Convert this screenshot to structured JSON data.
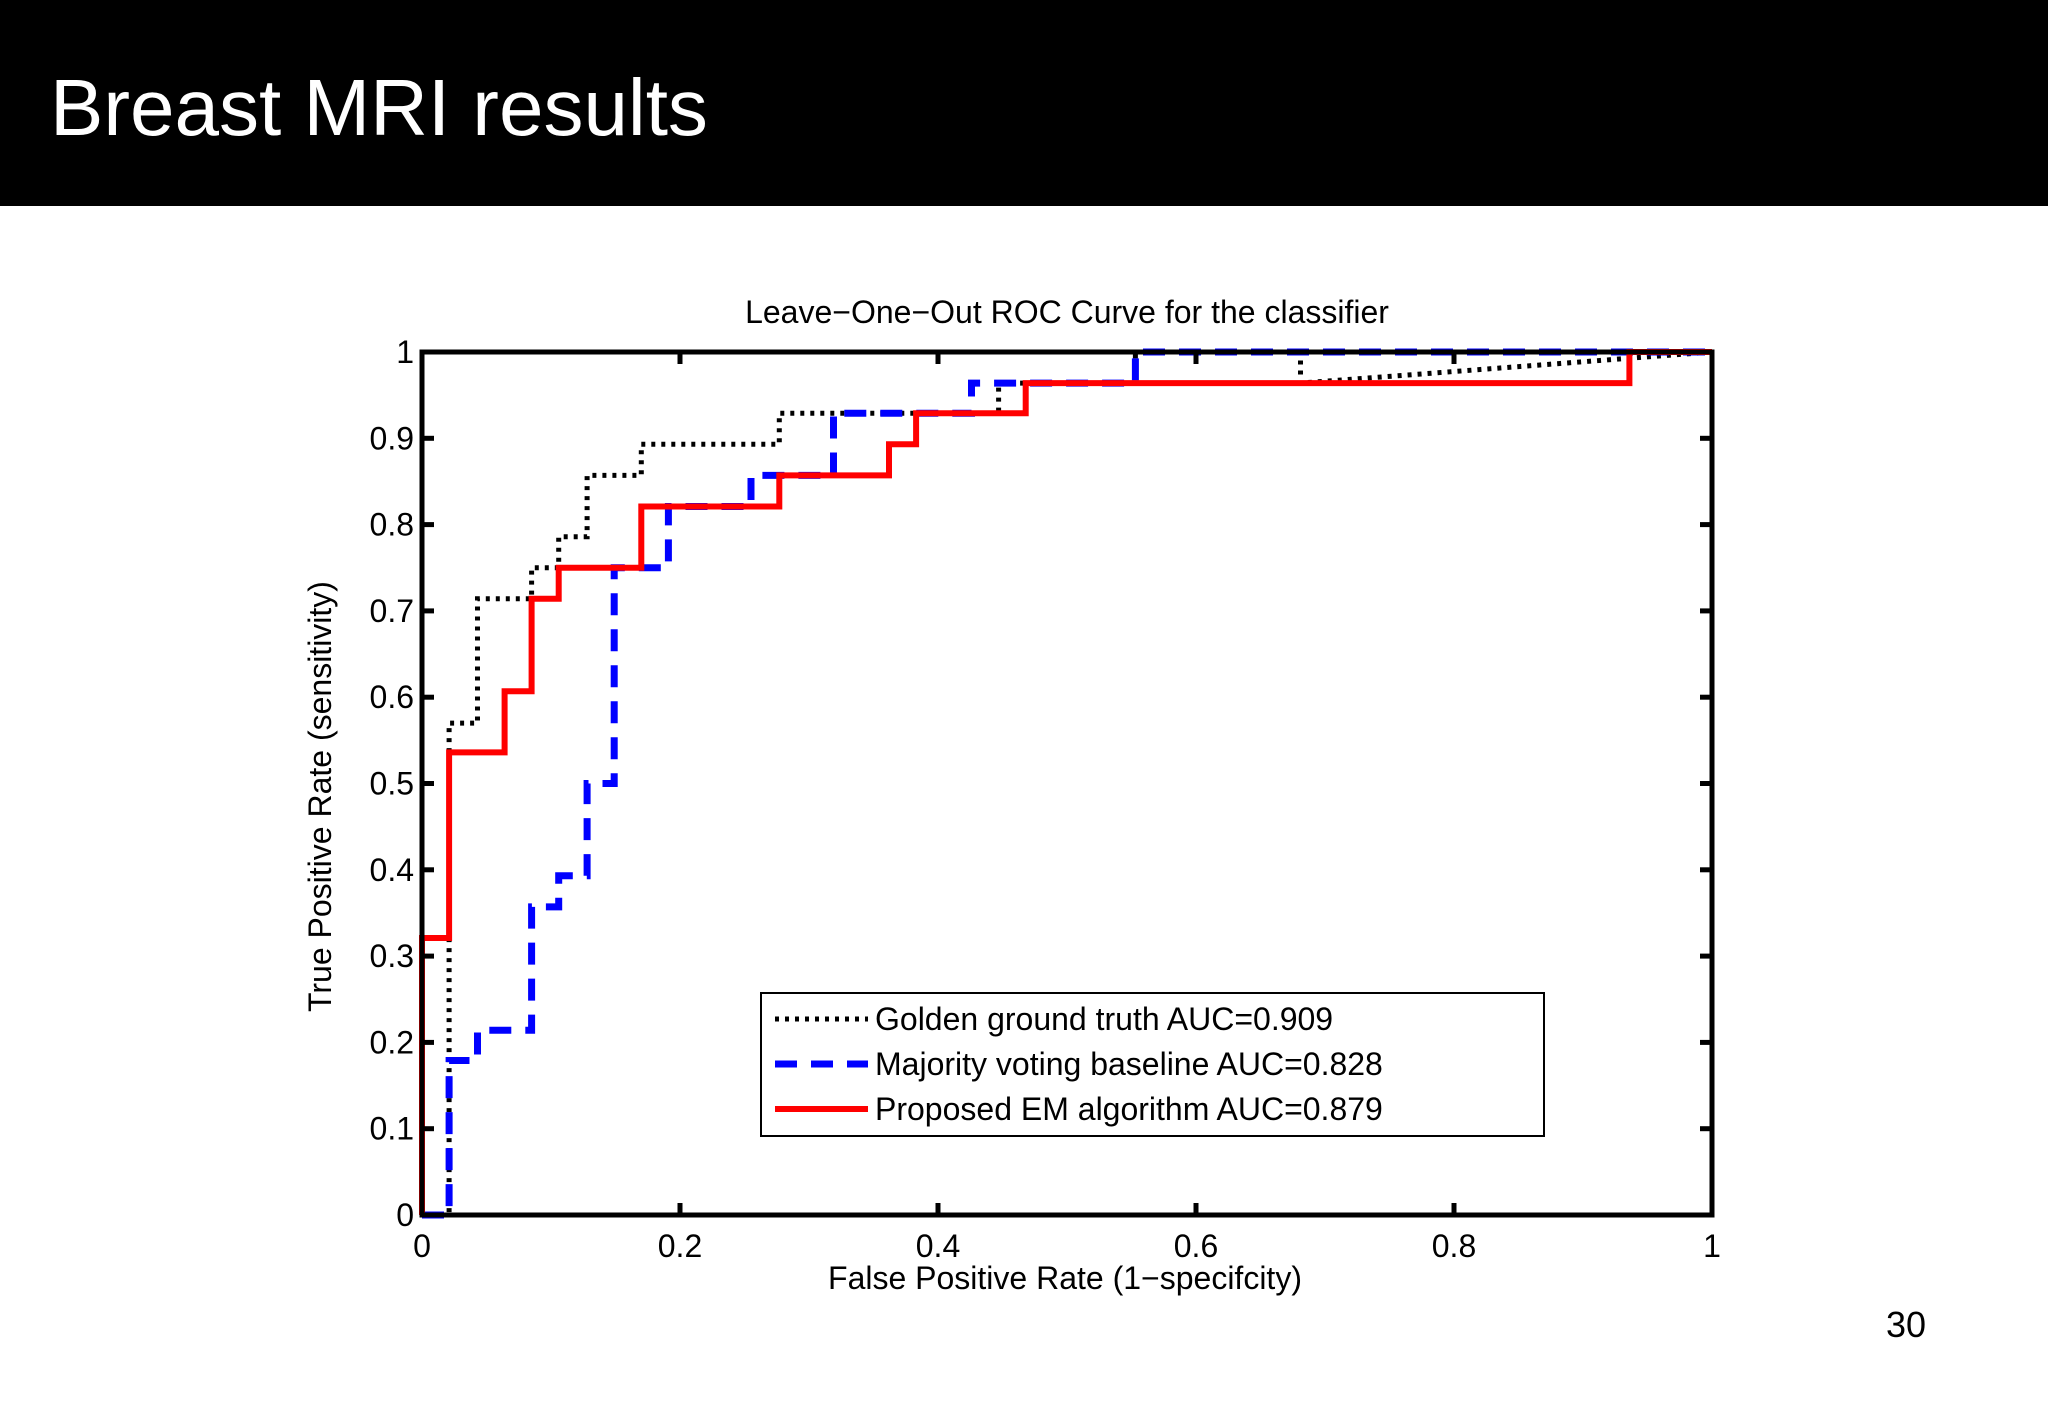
{
  "slide": {
    "title": "Breast MRI results",
    "page_number": "30"
  },
  "chart_data": {
    "type": "line",
    "title": "Leave−One−Out ROC Curve for the classifier",
    "xlabel": "False Positive Rate (1−specifcity)",
    "ylabel": "True Positive Rate  (sensitivity)",
    "xlim": [
      0,
      1
    ],
    "ylim": [
      0,
      1
    ],
    "grid": false,
    "legend_position": "bottom-right",
    "x_ticks": [
      0,
      0.2,
      0.4,
      0.6,
      0.8,
      1
    ],
    "y_ticks": [
      0,
      0.1,
      0.2,
      0.3,
      0.4,
      0.5,
      0.6,
      0.7,
      0.8,
      0.9,
      1
    ],
    "x_tick_labels": [
      "0",
      "0.2",
      "0.4",
      "0.6",
      "0.8",
      "1"
    ],
    "y_tick_labels": [
      "0",
      "0.1",
      "0.2",
      "0.3",
      "0.4",
      "0.5",
      "0.6",
      "0.7",
      "0.8",
      "0.9",
      "1"
    ],
    "series": [
      {
        "name": "Golden ground truth AUC=0.909",
        "color": "#000000",
        "style": "dotted",
        "x": [
          0,
          0.021,
          0.021,
          0.043,
          0.043,
          0.085,
          0.085,
          0.106,
          0.106,
          0.128,
          0.128,
          0.17,
          0.17,
          0.277,
          0.277,
          0.447,
          0.447,
          0.553,
          0.553,
          0.681,
          0.681,
          1
        ],
        "y": [
          0,
          0,
          0.57,
          0.57,
          0.714,
          0.714,
          0.75,
          0.75,
          0.786,
          0.786,
          0.857,
          0.857,
          0.893,
          0.893,
          0.929,
          0.929,
          0.964,
          0.964,
          1,
          1,
          0.964,
          1
        ]
      },
      {
        "name": "Majority voting baseline AUC=0.828",
        "color": "#0000ff",
        "style": "dashed",
        "x": [
          0,
          0.021,
          0.021,
          0.043,
          0.043,
          0.085,
          0.085,
          0.106,
          0.106,
          0.128,
          0.128,
          0.149,
          0.149,
          0.191,
          0.191,
          0.255,
          0.255,
          0.319,
          0.319,
          0.426,
          0.426,
          0.553,
          0.553,
          1
        ],
        "y": [
          0,
          0,
          0.179,
          0.179,
          0.214,
          0.214,
          0.357,
          0.357,
          0.393,
          0.393,
          0.5,
          0.5,
          0.75,
          0.75,
          0.821,
          0.821,
          0.857,
          0.857,
          0.929,
          0.929,
          0.964,
          0.964,
          1,
          1
        ]
      },
      {
        "name": "Proposed EM algorithm AUC=0.879",
        "color": "#ff0000",
        "style": "solid",
        "x": [
          0,
          0,
          0.021,
          0.021,
          0.064,
          0.064,
          0.085,
          0.085,
          0.106,
          0.106,
          0.17,
          0.17,
          0.277,
          0.277,
          0.362,
          0.362,
          0.383,
          0.383,
          0.468,
          0.468,
          0.936,
          0.936,
          1
        ],
        "y": [
          0,
          0.321,
          0.321,
          0.536,
          0.536,
          0.607,
          0.607,
          0.714,
          0.714,
          0.75,
          0.75,
          0.821,
          0.821,
          0.857,
          0.857,
          0.893,
          0.893,
          0.929,
          0.929,
          0.964,
          0.964,
          1,
          1
        ]
      }
    ]
  }
}
